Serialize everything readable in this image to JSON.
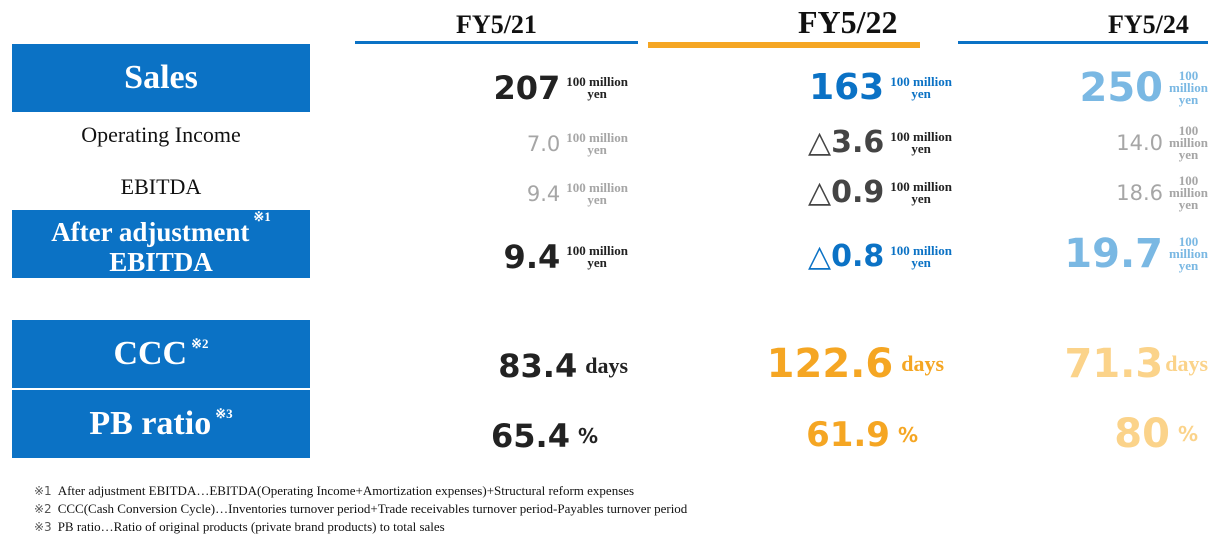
{
  "columns": [
    {
      "label": "FY5/21",
      "bar_color": "#0b72c5"
    },
    {
      "label": "FY5/22",
      "bar_color": "#f5a623"
    },
    {
      "label": "FY5/24",
      "bar_color": "#0b72c5"
    }
  ],
  "rows": {
    "sales": {
      "label": "Sales",
      "values": [
        "207",
        "163",
        "250"
      ],
      "unit_top": "100 million",
      "unit_bottom": "yen",
      "unit_c_top": "100",
      "unit_c_mid": "million",
      "unit_c_bottom": "yen"
    },
    "operating_income": {
      "label": "Operating Income",
      "values": [
        "7.0",
        "△3.6",
        "14.0"
      ],
      "unit_top": "100 million",
      "unit_bottom": "yen",
      "unit_c_top": "100",
      "unit_c_mid": "million",
      "unit_c_bottom": "yen"
    },
    "ebitda": {
      "label": "EBITDA",
      "values": [
        "9.4",
        "△0.9",
        "18.6"
      ],
      "unit_top": "100 million",
      "unit_bottom": "yen",
      "unit_c_top": "100",
      "unit_c_mid": "million",
      "unit_c_bottom": "yen"
    },
    "adj_ebitda": {
      "label_line1": "After adjustment",
      "label_line2": "EBITDA",
      "note": "※1",
      "values": [
        "9.4",
        "△0.8",
        "19.7"
      ],
      "unit_top": "100 million",
      "unit_bottom": "yen",
      "unit_c_top": "100",
      "unit_c_mid": "million",
      "unit_c_bottom": "yen"
    },
    "ccc": {
      "label": "CCC",
      "note": "※2",
      "values": [
        "83.4",
        "122.6",
        "71.3"
      ],
      "unit": "days"
    },
    "pb_ratio": {
      "label": "PB ratio",
      "note": "※3",
      "values": [
        "65.4",
        "61.9",
        "80"
      ],
      "unit": "%"
    }
  },
  "footnotes": [
    {
      "mark": "※1",
      "text": "After adjustment EBITDA…EBITDA(Operating Income+Amortization expenses)+Structural reform expenses"
    },
    {
      "mark": "※2",
      "text": "CCC(Cash Conversion Cycle)…Inventories turnover period+Trade receivables turnover period-Payables turnover period"
    },
    {
      "mark": "※3",
      "text": "PB ratio…Ratio of original products (private brand products) to total sales"
    }
  ],
  "colors": {
    "label_box": "#0b72c5",
    "blue": "#0b72c5",
    "light_blue": "#7ab8e3",
    "orange": "#f5a623",
    "light_orange": "#fbd38a",
    "gray": "#a6a6a6"
  }
}
